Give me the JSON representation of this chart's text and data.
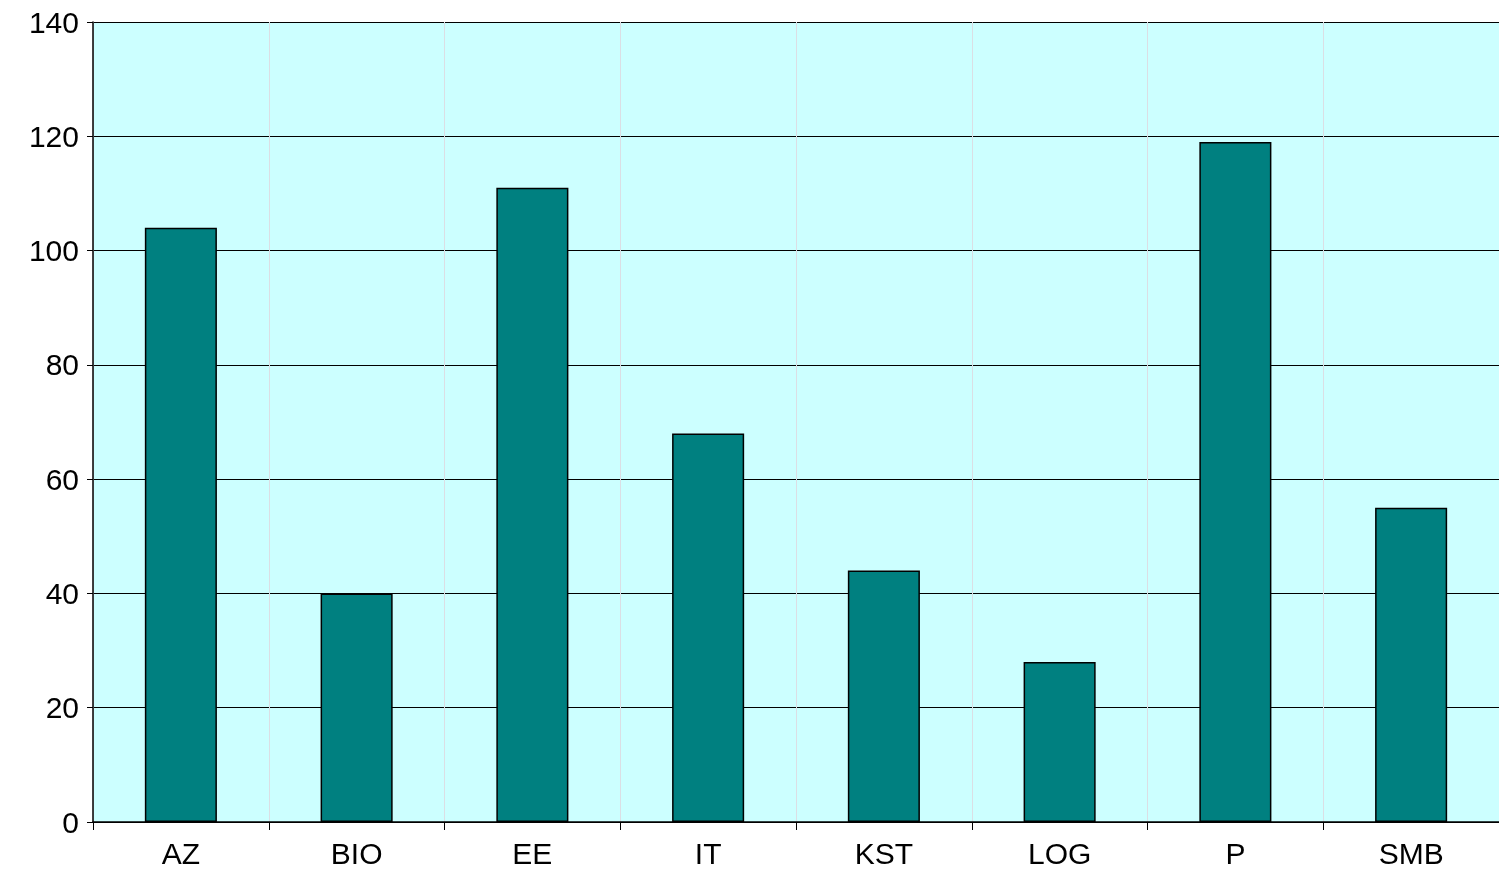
{
  "chart_data": {
    "type": "bar",
    "categories": [
      "AZ",
      "BIO",
      "EE",
      "IT",
      "KST",
      "LOG",
      "P",
      "SMB"
    ],
    "values": [
      104,
      40,
      111,
      68,
      44,
      28,
      119,
      55
    ],
    "color": "#008080",
    "ylim": [
      0,
      140
    ],
    "yticks": [
      0,
      20,
      40,
      60,
      80,
      100,
      120,
      140
    ],
    "grid": true
  }
}
